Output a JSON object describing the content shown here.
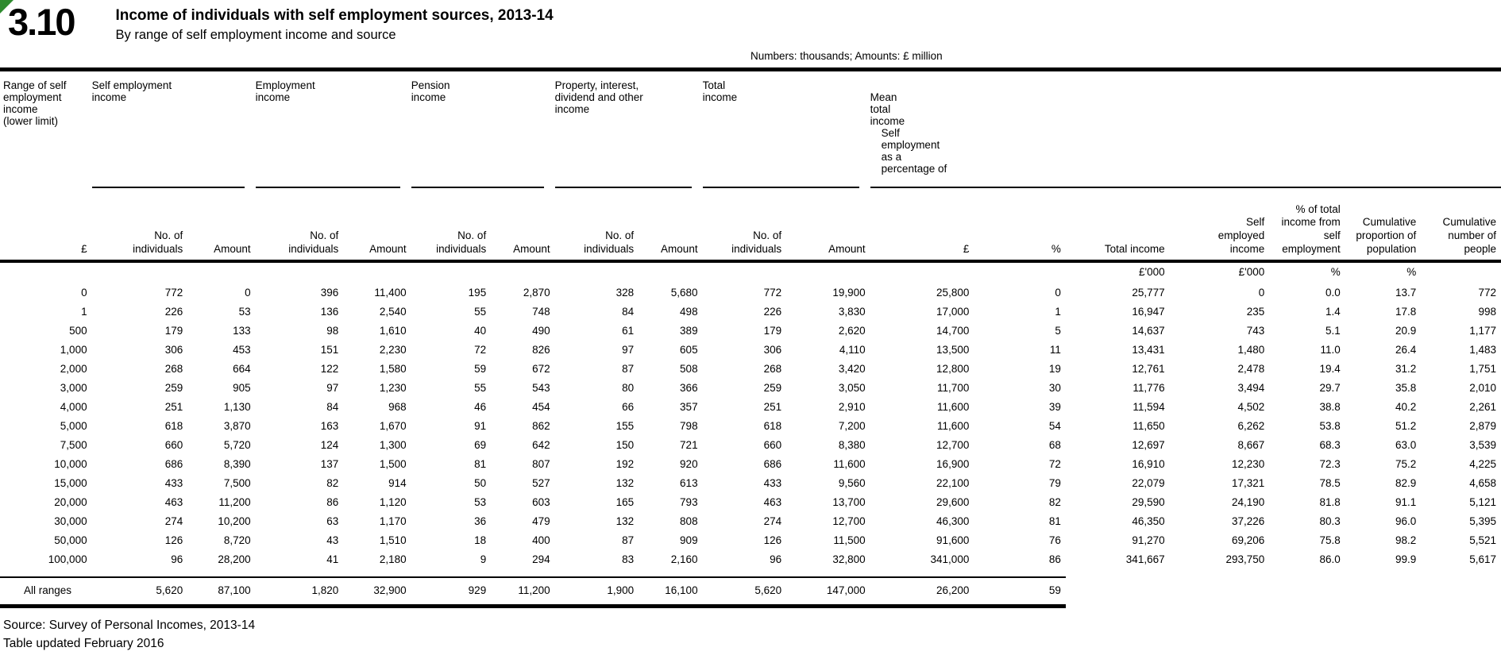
{
  "page": {
    "table_number": "3.10",
    "title": "Income of individuals with self employment sources, 2013-14",
    "subtitle": "By range of self employment income and source",
    "units_note": "Numbers: thousands; Amounts: £ million",
    "source_line": "Source: Survey of Personal Incomes, 2013-14",
    "updated_line": "Table updated February 2016",
    "accent_green": "#2e8b2e"
  },
  "table": {
    "row_header_label": "Range of self\nemployment\nincome\n(lower limit)",
    "groups": [
      {
        "label": "Self employment\nincome"
      },
      {
        "label": "Employment\nincome"
      },
      {
        "label": "Pension\nincome"
      },
      {
        "label": "Property, interest,\ndividend and other\nincome"
      },
      {
        "label": "Total\nincome"
      },
      {
        "label": "Mean\ntotal\nincome"
      },
      {
        "label": "Self\nemployment\nas a\npercentage of"
      }
    ],
    "columns": [
      "£",
      "No. of\nindividuals",
      "Amount",
      "No. of\nindividuals",
      "Amount",
      "No. of\nindividuals",
      "Amount",
      "No. of\nindividuals",
      "Amount",
      "No. of\nindividuals",
      "Amount",
      "£",
      "%",
      "Total income",
      "Self\nemployed\nincome",
      "% of total\nincome from\nself\nemployment",
      "Cumulative\nproportion of\npopulation",
      "Cumulative\nnumber of\npeople"
    ],
    "units": [
      "",
      "",
      "",
      "",
      "",
      "",
      "",
      "",
      "",
      "",
      "",
      "",
      "",
      "£'000",
      "£'000",
      "%",
      "%",
      ""
    ],
    "rows": [
      {
        "range": "0",
        "values": [
          "772",
          "0",
          "396",
          "11,400",
          "195",
          "2,870",
          "328",
          "5,680",
          "772",
          "19,900",
          "25,800",
          "0",
          "25,777",
          "0",
          "0.0",
          "13.7",
          "772"
        ]
      },
      {
        "range": "1",
        "values": [
          "226",
          "53",
          "136",
          "2,540",
          "55",
          "748",
          "84",
          "498",
          "226",
          "3,830",
          "17,000",
          "1",
          "16,947",
          "235",
          "1.4",
          "17.8",
          "998"
        ]
      },
      {
        "range": "500",
        "values": [
          "179",
          "133",
          "98",
          "1,610",
          "40",
          "490",
          "61",
          "389",
          "179",
          "2,620",
          "14,700",
          "5",
          "14,637",
          "743",
          "5.1",
          "20.9",
          "1,177"
        ]
      },
      {
        "range": "1,000",
        "values": [
          "306",
          "453",
          "151",
          "2,230",
          "72",
          "826",
          "97",
          "605",
          "306",
          "4,110",
          "13,500",
          "11",
          "13,431",
          "1,480",
          "11.0",
          "26.4",
          "1,483"
        ]
      },
      {
        "range": "2,000",
        "values": [
          "268",
          "664",
          "122",
          "1,580",
          "59",
          "672",
          "87",
          "508",
          "268",
          "3,420",
          "12,800",
          "19",
          "12,761",
          "2,478",
          "19.4",
          "31.2",
          "1,751"
        ]
      },
      {
        "range": "3,000",
        "values": [
          "259",
          "905",
          "97",
          "1,230",
          "55",
          "543",
          "80",
          "366",
          "259",
          "3,050",
          "11,700",
          "30",
          "11,776",
          "3,494",
          "29.7",
          "35.8",
          "2,010"
        ]
      },
      {
        "range": "4,000",
        "values": [
          "251",
          "1,130",
          "84",
          "968",
          "46",
          "454",
          "66",
          "357",
          "251",
          "2,910",
          "11,600",
          "39",
          "11,594",
          "4,502",
          "38.8",
          "40.2",
          "2,261"
        ]
      },
      {
        "range": "5,000",
        "values": [
          "618",
          "3,870",
          "163",
          "1,670",
          "91",
          "862",
          "155",
          "798",
          "618",
          "7,200",
          "11,600",
          "54",
          "11,650",
          "6,262",
          "53.8",
          "51.2",
          "2,879"
        ]
      },
      {
        "range": "7,500",
        "values": [
          "660",
          "5,720",
          "124",
          "1,300",
          "69",
          "642",
          "150",
          "721",
          "660",
          "8,380",
          "12,700",
          "68",
          "12,697",
          "8,667",
          "68.3",
          "63.0",
          "3,539"
        ]
      },
      {
        "range": "10,000",
        "values": [
          "686",
          "8,390",
          "137",
          "1,500",
          "81",
          "807",
          "192",
          "920",
          "686",
          "11,600",
          "16,900",
          "72",
          "16,910",
          "12,230",
          "72.3",
          "75.2",
          "4,225"
        ]
      },
      {
        "range": "15,000",
        "values": [
          "433",
          "7,500",
          "82",
          "914",
          "50",
          "527",
          "132",
          "613",
          "433",
          "9,560",
          "22,100",
          "79",
          "22,079",
          "17,321",
          "78.5",
          "82.9",
          "4,658"
        ]
      },
      {
        "range": "20,000",
        "values": [
          "463",
          "11,200",
          "86",
          "1,120",
          "53",
          "603",
          "165",
          "793",
          "463",
          "13,700",
          "29,600",
          "82",
          "29,590",
          "24,190",
          "81.8",
          "91.1",
          "5,121"
        ]
      },
      {
        "range": "30,000",
        "values": [
          "274",
          "10,200",
          "63",
          "1,170",
          "36",
          "479",
          "132",
          "808",
          "274",
          "12,700",
          "46,300",
          "81",
          "46,350",
          "37,226",
          "80.3",
          "96.0",
          "5,395"
        ]
      },
      {
        "range": "50,000",
        "values": [
          "126",
          "8,720",
          "43",
          "1,510",
          "18",
          "400",
          "87",
          "909",
          "126",
          "11,500",
          "91,600",
          "76",
          "91,270",
          "69,206",
          "75.8",
          "98.2",
          "5,521"
        ]
      },
      {
        "range": "100,000",
        "values": [
          "96",
          "28,200",
          "41",
          "2,180",
          "9",
          "294",
          "83",
          "2,160",
          "96",
          "32,800",
          "341,000",
          "86",
          "341,667",
          "293,750",
          "86.0",
          "99.9",
          "5,617"
        ]
      }
    ],
    "total_row": {
      "label": "All ranges",
      "values": [
        "5,620",
        "87,100",
        "1,820",
        "32,900",
        "929",
        "11,200",
        "1,900",
        "16,100",
        "5,620",
        "147,000",
        "26,200",
        "59"
      ]
    }
  }
}
